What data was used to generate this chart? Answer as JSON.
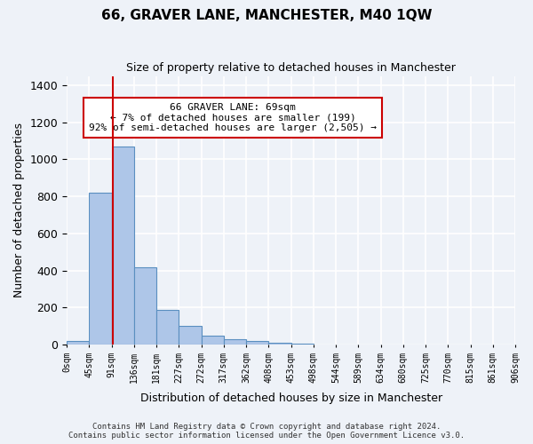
{
  "title": "66, GRAVER LANE, MANCHESTER, M40 1QW",
  "subtitle": "Size of property relative to detached houses in Manchester",
  "xlabel": "Distribution of detached houses by size in Manchester",
  "ylabel": "Number of detached properties",
  "bar_values": [
    20,
    820,
    1070,
    415,
    185,
    100,
    48,
    28,
    18,
    10,
    5,
    0,
    0,
    0,
    0,
    0,
    0,
    0,
    0,
    0
  ],
  "bar_color": "#aec6e8",
  "bar_edge_color": "#5a8fc0",
  "x_labels": [
    "0sqm",
    "45sqm",
    "91sqm",
    "136sqm",
    "181sqm",
    "227sqm",
    "272sqm",
    "317sqm",
    "362sqm",
    "408sqm",
    "453sqm",
    "498sqm",
    "544sqm",
    "589sqm",
    "634sqm",
    "680sqm",
    "725sqm",
    "770sqm",
    "815sqm",
    "861sqm",
    "906sqm"
  ],
  "ylim": [
    0,
    1450
  ],
  "yticks": [
    0,
    200,
    400,
    600,
    800,
    1000,
    1200,
    1400
  ],
  "vline_x": 1.55,
  "vline_color": "#cc0000",
  "annotation_text": "66 GRAVER LANE: 69sqm\n← 7% of detached houses are smaller (199)\n92% of semi-detached houses are larger (2,505) →",
  "footer_text": "Contains HM Land Registry data © Crown copyright and database right 2024.\nContains public sector information licensed under the Open Government Licence v3.0.",
  "bg_color": "#eef2f8",
  "plot_bg_color": "#eef2f8",
  "grid_color": "#ffffff"
}
